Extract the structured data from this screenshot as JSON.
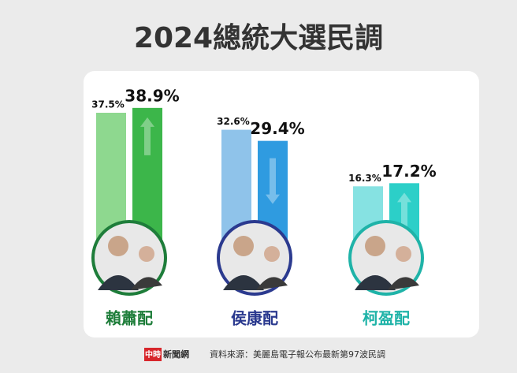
{
  "chart_data": {
    "type": "bar",
    "title": "2024總統大選民調",
    "categories": [
      "賴蕭配",
      "侯康配",
      "柯盈配"
    ],
    "category_colors": [
      "#1e7d3a",
      "#2b3a8f",
      "#1fb3a8"
    ],
    "series": [
      {
        "values": [
          37.5,
          32.6,
          16.3
        ],
        "value_labels": [
          "37.5%",
          "32.6%",
          "16.3%"
        ],
        "colors": [
          "#8ed88f",
          "#8fc3ea",
          "#86e2e2"
        ]
      },
      {
        "values": [
          38.9,
          29.4,
          17.2
        ],
        "value_labels": [
          "38.9%",
          "29.4%",
          "17.2%"
        ],
        "colors": [
          "#3cb64a",
          "#2f9be0",
          "#2ccfc8"
        ]
      }
    ]
  },
  "footer": {
    "logo_main": "中時",
    "logo_sub": "新聞網",
    "source": "資料來源：美麗島電子報公布最新第97波民調"
  }
}
